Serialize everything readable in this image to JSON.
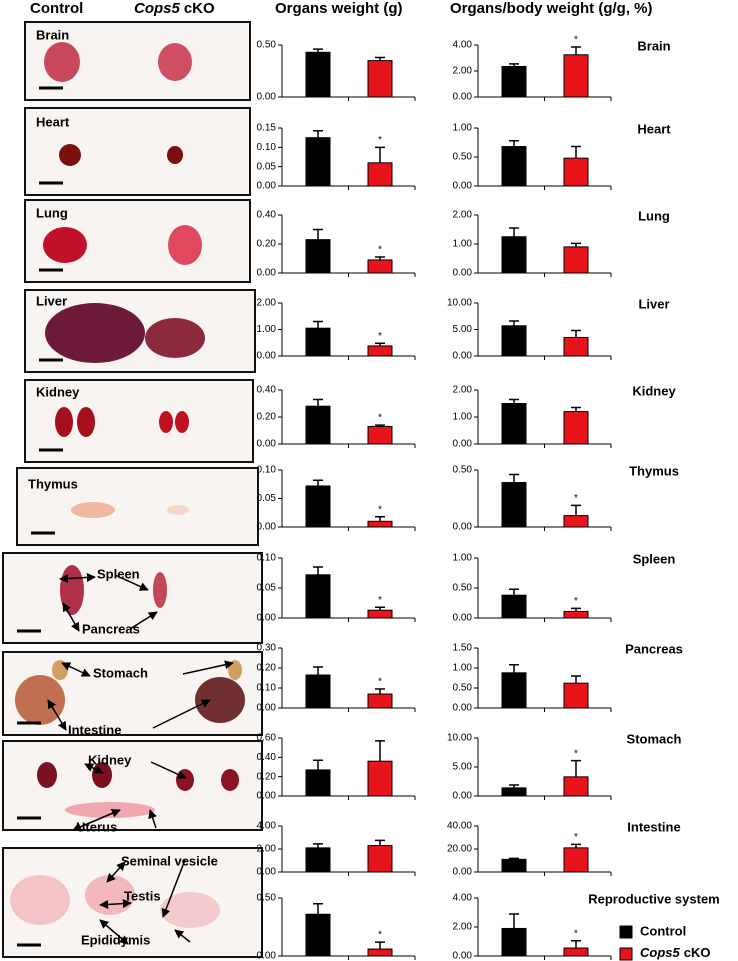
{
  "header": {
    "control": "Control",
    "cko_gene": "Cops5",
    "cko_suffix": "cKO",
    "weight_title": "Organs weight (g)",
    "ratio_title": "Organs/body weight (g/g, %)"
  },
  "photos": [
    {
      "labels": [
        "Brain"
      ]
    },
    {
      "labels": [
        "Heart"
      ]
    },
    {
      "labels": [
        "Lung"
      ]
    },
    {
      "labels": [
        "Liver"
      ]
    },
    {
      "labels": [
        "Kidney"
      ]
    },
    {
      "labels": [
        "Thymus"
      ]
    },
    {
      "labels": [
        "Spleen",
        "Pancreas"
      ]
    },
    {
      "labels": [
        "Stomach",
        "Intestine"
      ]
    },
    {
      "labels": [
        "Kidney",
        "Uterus"
      ]
    },
    {
      "labels": [
        "Seminal vesicle",
        "Testis",
        "Epididymis"
      ]
    }
  ],
  "legend": [
    {
      "name": "Control",
      "color": "#000000"
    },
    {
      "name_gene": "Cops5",
      "name_suffix": "cKO",
      "color": "#e8141b"
    }
  ],
  "chart_data": [
    {
      "type": "bar",
      "values": [
        0.43,
        0.35
      ],
      "errors": [
        0.03,
        0.03
      ],
      "significance": [
        null,
        null
      ],
      "ylim": [
        0,
        0.5
      ],
      "yticks": [
        {
          "value": 0,
          "label": "0.00"
        },
        {
          "value": 0.5,
          "label": "0.50"
        }
      ]
    },
    {
      "type": "bar",
      "title": "Brain",
      "values": [
        2.35,
        3.25
      ],
      "errors": [
        0.2,
        0.6
      ],
      "significance": [
        null,
        "*"
      ],
      "ylim": [
        0,
        4
      ],
      "yticks": [
        {
          "value": 0,
          "label": "0.00"
        },
        {
          "value": 2,
          "label": "2.00"
        },
        {
          "value": 4,
          "label": "4.00"
        }
      ]
    },
    {
      "type": "bar",
      "values": [
        0.125,
        0.06
      ],
      "errors": [
        0.018,
        0.04
      ],
      "significance": [
        null,
        "*"
      ],
      "ylim": [
        0,
        0.15
      ],
      "yticks": [
        {
          "value": 0,
          "label": "0.00"
        },
        {
          "value": 0.05,
          "label": "0.05"
        },
        {
          "value": 0.1,
          "label": "0.10"
        },
        {
          "value": 0.15,
          "label": "0.15"
        }
      ]
    },
    {
      "type": "bar",
      "title": "Heart",
      "values": [
        0.68,
        0.48
      ],
      "errors": [
        0.1,
        0.2
      ],
      "significance": [
        null,
        null
      ],
      "ylim": [
        0,
        1
      ],
      "yticks": [
        {
          "value": 0,
          "label": "0.00"
        },
        {
          "value": 0.5,
          "label": "0.50"
        },
        {
          "value": 1,
          "label": "1.00"
        }
      ]
    },
    {
      "type": "bar",
      "values": [
        0.23,
        0.09
      ],
      "errors": [
        0.07,
        0.02
      ],
      "significance": [
        null,
        "*"
      ],
      "ylim": [
        0,
        0.4
      ],
      "yticks": [
        {
          "value": 0,
          "label": "0.00"
        },
        {
          "value": 0.2,
          "label": "0.20"
        },
        {
          "value": 0.4,
          "label": "0.40"
        }
      ]
    },
    {
      "type": "bar",
      "title": "Lung",
      "values": [
        1.25,
        0.9
      ],
      "errors": [
        0.3,
        0.12
      ],
      "significance": [
        null,
        null
      ],
      "ylim": [
        0,
        2
      ],
      "yticks": [
        {
          "value": 0,
          "label": "0.00"
        },
        {
          "value": 1,
          "label": "1.00"
        },
        {
          "value": 2,
          "label": "2.00"
        }
      ]
    },
    {
      "type": "bar",
      "values": [
        1.05,
        0.38
      ],
      "errors": [
        0.25,
        0.1
      ],
      "significance": [
        null,
        "*"
      ],
      "ylim": [
        0,
        2
      ],
      "yticks": [
        {
          "value": 0,
          "label": "0.00"
        },
        {
          "value": 1,
          "label": "1.00"
        },
        {
          "value": 2,
          "label": "2.00"
        }
      ]
    },
    {
      "type": "bar",
      "title": "Liver",
      "values": [
        5.7,
        3.5
      ],
      "errors": [
        0.9,
        1.3
      ],
      "significance": [
        null,
        null
      ],
      "ylim": [
        0,
        10
      ],
      "yticks": [
        {
          "value": 0,
          "label": "0.00"
        },
        {
          "value": 5,
          "label": "5.00"
        },
        {
          "value": 10,
          "label": "10.00"
        }
      ]
    },
    {
      "type": "bar",
      "values": [
        0.28,
        0.13
      ],
      "errors": [
        0.05,
        0.01
      ],
      "significance": [
        null,
        "*"
      ],
      "ylim": [
        0,
        0.4
      ],
      "yticks": [
        {
          "value": 0,
          "label": "0.00"
        },
        {
          "value": 0.2,
          "label": "0.20"
        },
        {
          "value": 0.4,
          "label": "0.40"
        }
      ]
    },
    {
      "type": "bar",
      "title": "Kidney",
      "values": [
        1.5,
        1.2
      ],
      "errors": [
        0.15,
        0.15
      ],
      "significance": [
        null,
        null
      ],
      "ylim": [
        0,
        2
      ],
      "yticks": [
        {
          "value": 0,
          "label": "0.00"
        },
        {
          "value": 1,
          "label": "1.00"
        },
        {
          "value": 2,
          "label": "2.00"
        }
      ]
    },
    {
      "type": "bar",
      "values": [
        0.072,
        0.01
      ],
      "errors": [
        0.01,
        0.008
      ],
      "significance": [
        null,
        "*"
      ],
      "ylim": [
        0,
        0.1
      ],
      "yticks": [
        {
          "value": 0,
          "label": "0.00"
        },
        {
          "value": 0.05,
          "label": "0.05"
        },
        {
          "value": 0.1,
          "label": "0.10"
        }
      ]
    },
    {
      "type": "bar",
      "title": "Thymus",
      "values": [
        0.39,
        0.1
      ],
      "errors": [
        0.07,
        0.09
      ],
      "significance": [
        null,
        "*"
      ],
      "ylim": [
        0,
        0.5
      ],
      "yticks": [
        {
          "value": 0,
          "label": "0.00"
        },
        {
          "value": 0.5,
          "label": "0.50"
        }
      ]
    },
    {
      "type": "bar",
      "values": [
        0.072,
        0.013
      ],
      "errors": [
        0.013,
        0.005
      ],
      "significance": [
        null,
        "*"
      ],
      "ylim": [
        0,
        0.1
      ],
      "yticks": [
        {
          "value": 0,
          "label": "0.00"
        },
        {
          "value": 0.05,
          "label": "0.05"
        },
        {
          "value": 0.1,
          "label": "0.10"
        }
      ]
    },
    {
      "type": "bar",
      "title": "Spleen",
      "values": [
        0.38,
        0.11
      ],
      "errors": [
        0.1,
        0.05
      ],
      "significance": [
        null,
        "*"
      ],
      "ylim": [
        0,
        1
      ],
      "yticks": [
        {
          "value": 0,
          "label": "0.00"
        },
        {
          "value": 0.5,
          "label": "0.50"
        },
        {
          "value": 1,
          "label": "1.00"
        }
      ]
    },
    {
      "type": "bar",
      "values": [
        0.165,
        0.07
      ],
      "errors": [
        0.04,
        0.025
      ],
      "significance": [
        null,
        "*"
      ],
      "ylim": [
        0,
        0.3
      ],
      "yticks": [
        {
          "value": 0,
          "label": "0.00"
        },
        {
          "value": 0.1,
          "label": "0.10"
        },
        {
          "value": 0.2,
          "label": "0.20"
        },
        {
          "value": 0.3,
          "label": "0.30"
        }
      ]
    },
    {
      "type": "bar",
      "title": "Pancreas",
      "values": [
        0.88,
        0.62
      ],
      "errors": [
        0.2,
        0.18
      ],
      "significance": [
        null,
        null
      ],
      "ylim": [
        0,
        1.5
      ],
      "yticks": [
        {
          "value": 0,
          "label": "0.00"
        },
        {
          "value": 0.5,
          "label": "0.50"
        },
        {
          "value": 1,
          "label": "1.00"
        },
        {
          "value": 1.5,
          "label": "1.50"
        }
      ]
    },
    {
      "type": "bar",
      "values": [
        0.27,
        0.36
      ],
      "errors": [
        0.1,
        0.21
      ],
      "significance": [
        null,
        null
      ],
      "ylim": [
        0,
        0.6
      ],
      "yticks": [
        {
          "value": 0,
          "label": "0.00"
        },
        {
          "value": 0.2,
          "label": "0.20"
        },
        {
          "value": 0.4,
          "label": "0.40"
        },
        {
          "value": 0.6,
          "label": "0.60"
        }
      ]
    },
    {
      "type": "bar",
      "title": "Stomach",
      "values": [
        1.4,
        3.3
      ],
      "errors": [
        0.5,
        2.8
      ],
      "significance": [
        null,
        "*"
      ],
      "ylim": [
        0,
        10
      ],
      "yticks": [
        {
          "value": 0,
          "label": "0.00"
        },
        {
          "value": 5,
          "label": "5.00"
        },
        {
          "value": 10,
          "label": "10.00"
        }
      ]
    },
    {
      "type": "bar",
      "values": [
        2.1,
        2.3
      ],
      "errors": [
        0.35,
        0.45
      ],
      "significance": [
        null,
        null
      ],
      "ylim": [
        0,
        4
      ],
      "yticks": [
        {
          "value": 0,
          "label": "0.00"
        },
        {
          "value": 2,
          "label": "2.00"
        },
        {
          "value": 4,
          "label": "4.00"
        }
      ]
    },
    {
      "type": "bar",
      "title": "Intestine",
      "values": [
        11,
        21
      ],
      "errors": [
        0.8,
        3
      ],
      "significance": [
        null,
        "*"
      ],
      "ylim": [
        0,
        40
      ],
      "yticks": [
        {
          "value": 0,
          "label": "0.00"
        },
        {
          "value": 20,
          "label": "20.00"
        },
        {
          "value": 40,
          "label": "40.00"
        }
      ]
    },
    {
      "type": "bar",
      "values": [
        0.36,
        0.06
      ],
      "errors": [
        0.09,
        0.06
      ],
      "significance": [
        null,
        "*"
      ],
      "ylim": [
        0,
        0.5
      ],
      "yticks": [
        {
          "value": 0,
          "label": "0.00"
        },
        {
          "value": 0.5,
          "label": "0.50"
        }
      ]
    },
    {
      "type": "bar",
      "title": "Reproductive system",
      "values": [
        1.9,
        0.55
      ],
      "errors": [
        1.0,
        0.5
      ],
      "significance": [
        null,
        "*"
      ],
      "ylim": [
        0,
        4
      ],
      "yticks": [
        {
          "value": 0,
          "label": "0.00"
        },
        {
          "value": 2,
          "label": "2.00"
        },
        {
          "value": 4,
          "label": "4.00"
        }
      ]
    }
  ]
}
